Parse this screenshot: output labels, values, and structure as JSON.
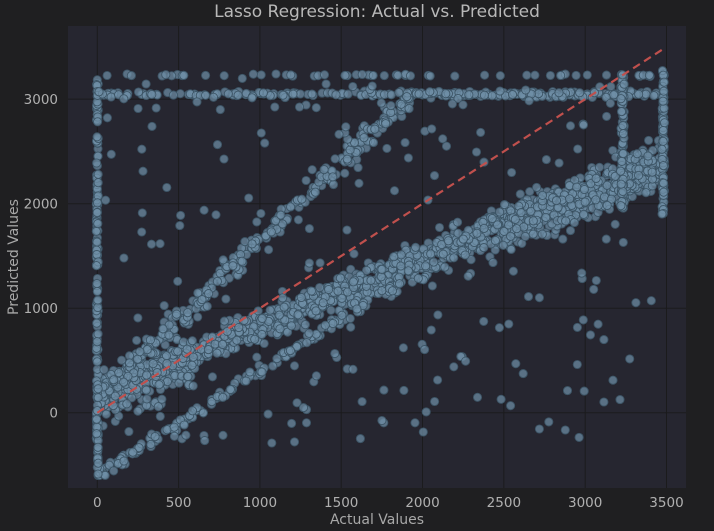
{
  "chart_data": {
    "type": "scatter",
    "title": "Lasso Regression: Actual vs. Predicted",
    "xlabel": "Actual Values",
    "ylabel": "Predicted Values",
    "xlim": [
      -180,
      3620
    ],
    "ylim": [
      -720,
      3700
    ],
    "xticks": [
      0,
      500,
      1000,
      1500,
      2000,
      2500,
      3000,
      3500
    ],
    "yticks": [
      0,
      1000,
      2000,
      3000
    ],
    "grid": true,
    "legend": "none",
    "colors": {
      "points": "#6f8fa6",
      "point_edge": "#3d5566",
      "reference_line": "#c0504d",
      "plot_bg": "#262630",
      "page_bg": "#1f1f21"
    },
    "reference_line": {
      "style": "dashed",
      "color": "#c0504d",
      "points": [
        [
          0,
          0
        ],
        [
          3480,
          3480
        ]
      ]
    },
    "series": [
      {
        "values": "scatter cloud of actual vs. predicted values (approx. 3000 points): main band y≈0.65x+200, secondary band y≈1.5x+150 saturating at 3050, lower band y≈x-600, column at x=0, cap at y≈3050/3230, columns at x≈3230 and x≈3480"
      }
    ]
  }
}
